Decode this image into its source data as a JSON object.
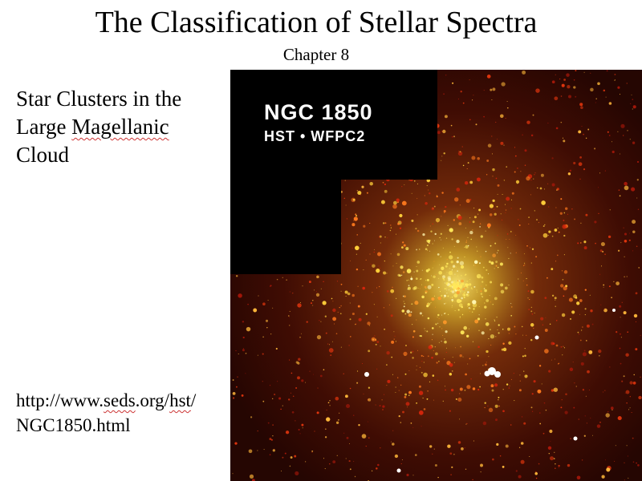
{
  "slide": {
    "title": "The Classification of Stellar Spectra",
    "subtitle": "Chapter 8",
    "caption_lines": [
      "Star Clusters in the",
      "Large Magellanic",
      "Cloud"
    ],
    "url_lines": [
      "http://www.seds.org/hst/",
      "NGC1850.html"
    ]
  },
  "image": {
    "label_line1": "NGC 1850",
    "label_line2": "HST • WFPC2",
    "description": "Hubble WFPC2 image of star cluster NGC 1850",
    "colors": {
      "background": "#000000",
      "core": "#ffe25a",
      "field": "#8a1a06",
      "star_hot": "#ffffff"
    }
  },
  "colors": {
    "spellcheck_underline": "#cc3333"
  }
}
